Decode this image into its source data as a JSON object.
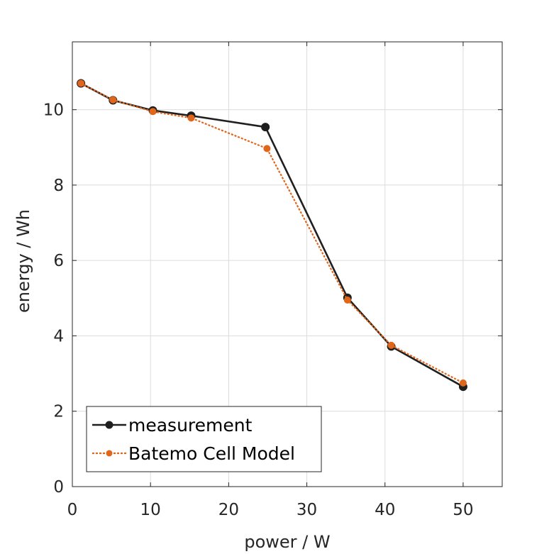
{
  "chart_data": {
    "type": "line",
    "title": "",
    "xlabel": "power / W",
    "ylabel": "energy / Wh",
    "xlim": [
      0,
      55
    ],
    "ylim": [
      0,
      11.8
    ],
    "xticks": [
      0,
      10,
      20,
      30,
      40,
      50
    ],
    "yticks": [
      0,
      2,
      4,
      6,
      8,
      10
    ],
    "grid": true,
    "legend_position": "bottom-left",
    "series": [
      {
        "name": "measurement",
        "color": "#1f1f1f",
        "line_style": "solid",
        "marker": "circle",
        "x": [
          1.1,
          5.2,
          10.3,
          15.2,
          24.7,
          35.2,
          40.8,
          50.0
        ],
        "y": [
          10.7,
          10.25,
          9.98,
          9.84,
          9.54,
          5.01,
          3.72,
          2.65
        ]
      },
      {
        "name": "Batemo Cell Model",
        "color": "#e0661c",
        "line_style": "dotted",
        "marker": "circle",
        "x": [
          1.1,
          5.2,
          10.3,
          15.2,
          24.9,
          35.2,
          40.8,
          50.0
        ],
        "y": [
          10.7,
          10.26,
          9.95,
          9.78,
          8.97,
          4.95,
          3.75,
          2.75
        ]
      }
    ]
  }
}
